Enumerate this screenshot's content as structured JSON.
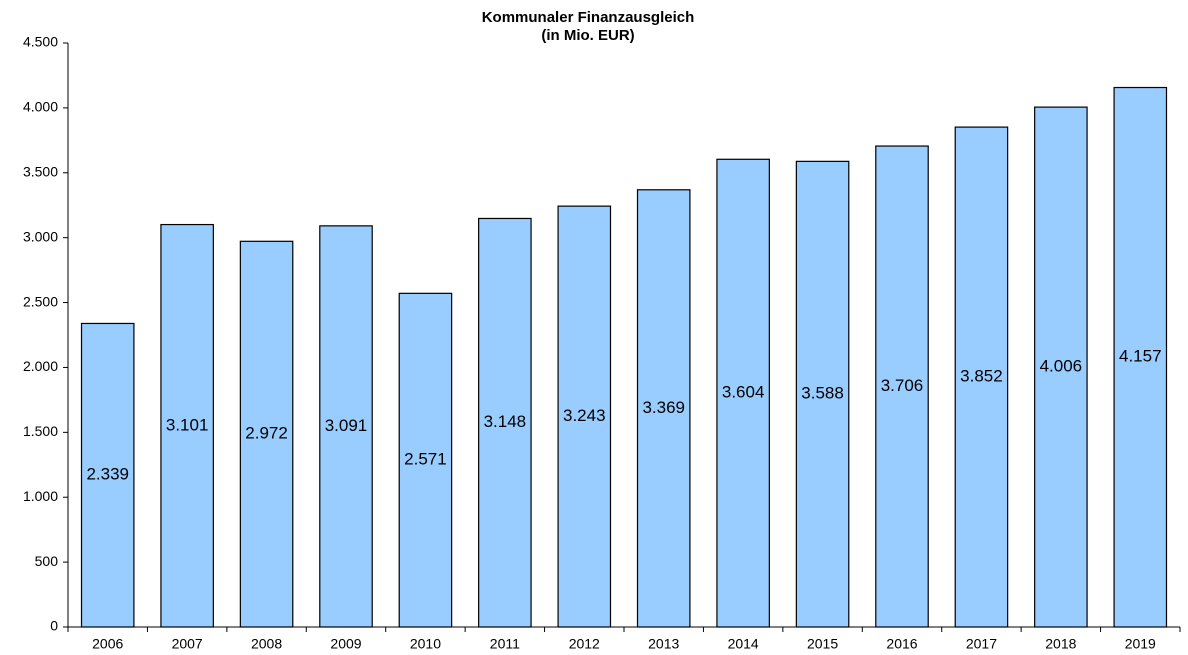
{
  "chart_data": {
    "type": "bar",
    "title": "Kommunaler Finanzausgleich",
    "subtitle": "(in Mio. EUR)",
    "categories": [
      "2006",
      "2007",
      "2008",
      "2009",
      "2010",
      "2011",
      "2012",
      "2013",
      "2014",
      "2015",
      "2016",
      "2017",
      "2018",
      "2019"
    ],
    "values": [
      2339,
      3101,
      2972,
      3091,
      2571,
      3148,
      3243,
      3369,
      3604,
      3588,
      3706,
      3852,
      4006,
      4157
    ],
    "value_labels": [
      "2.339",
      "3.101",
      "2.972",
      "3.091",
      "2.571",
      "3.148",
      "3.243",
      "3.369",
      "3.604",
      "3.588",
      "3.706",
      "3.852",
      "4.006",
      "4.157"
    ],
    "color": "#99ccff",
    "ylim": [
      0,
      4500
    ],
    "yticks": [
      0,
      500,
      {
        "value": 1000,
        "label": "1.000"
      },
      {
        "value": 1500,
        "label": "1.500"
      },
      {
        "value": 2000,
        "label": "2.000"
      },
      {
        "value": 2500,
        "label": "2.500"
      },
      {
        "value": 3000,
        "label": "3.000"
      },
      {
        "value": 3500,
        "label": "3.500"
      },
      {
        "value": 4000,
        "label": "4.000"
      },
      {
        "value": 4500,
        "label": "4.500"
      }
    ],
    "grid": false
  }
}
